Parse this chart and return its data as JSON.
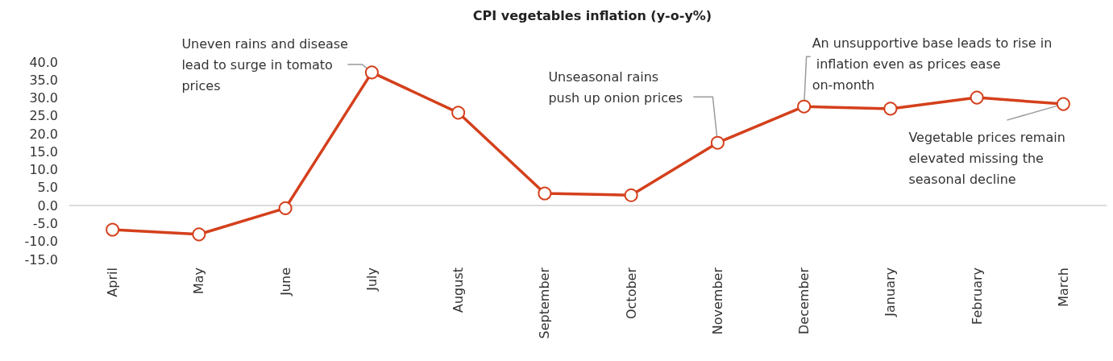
{
  "chart_data": {
    "type": "line",
    "title": "CPI vegetables inflation (y-o-y%)",
    "categories": [
      "April",
      "May",
      "June",
      "July",
      "August",
      "September",
      "October",
      "November",
      "December",
      "January",
      "February",
      "March"
    ],
    "series": [
      {
        "color": "#d4401c",
        "values": [
          -6.7,
          -8.0,
          -0.7,
          37.1,
          25.9,
          3.4,
          2.9,
          17.5,
          27.6,
          27.0,
          30.1,
          28.3
        ]
      }
    ],
    "ylim": [
      -15,
      40
    ],
    "yticks": [
      {
        "value": -15,
        "label": "-15.0"
      },
      {
        "value": -10,
        "label": "-10.0"
      },
      {
        "value": -5,
        "label": "-5.0"
      },
      {
        "value": 0,
        "label": "0.0"
      },
      {
        "value": 5,
        "label": "5.0"
      },
      {
        "value": 10,
        "label": "10.0"
      },
      {
        "value": 15,
        "label": "15.0"
      },
      {
        "value": 20,
        "label": "20.0"
      },
      {
        "value": 25,
        "label": "25.0"
      },
      {
        "value": 30,
        "label": "30.0"
      },
      {
        "value": 35,
        "label": "35.0"
      },
      {
        "value": 40,
        "label": "40.0"
      }
    ],
    "grid": false,
    "marker": "circle",
    "line_style": "solid",
    "ref_lines": [
      {
        "axis": "y",
        "value": 0,
        "color": "#d0d0d0"
      }
    ],
    "annotations": [
      {
        "text": "Uneven rains and disease lead to surge in tomato prices",
        "x": "July",
        "y": 37.1
      },
      {
        "text": "Unseasonal rains push up onion prices",
        "x": "November",
        "y": 17.5
      },
      {
        "text": "An unsupportive base leads to rise in inflation even as prices ease on-month",
        "x": "December",
        "y": 27.6
      },
      {
        "text": "Vegetable prices remain elevated missing the seasonal decline",
        "x": "March",
        "y": 28.3
      }
    ]
  }
}
